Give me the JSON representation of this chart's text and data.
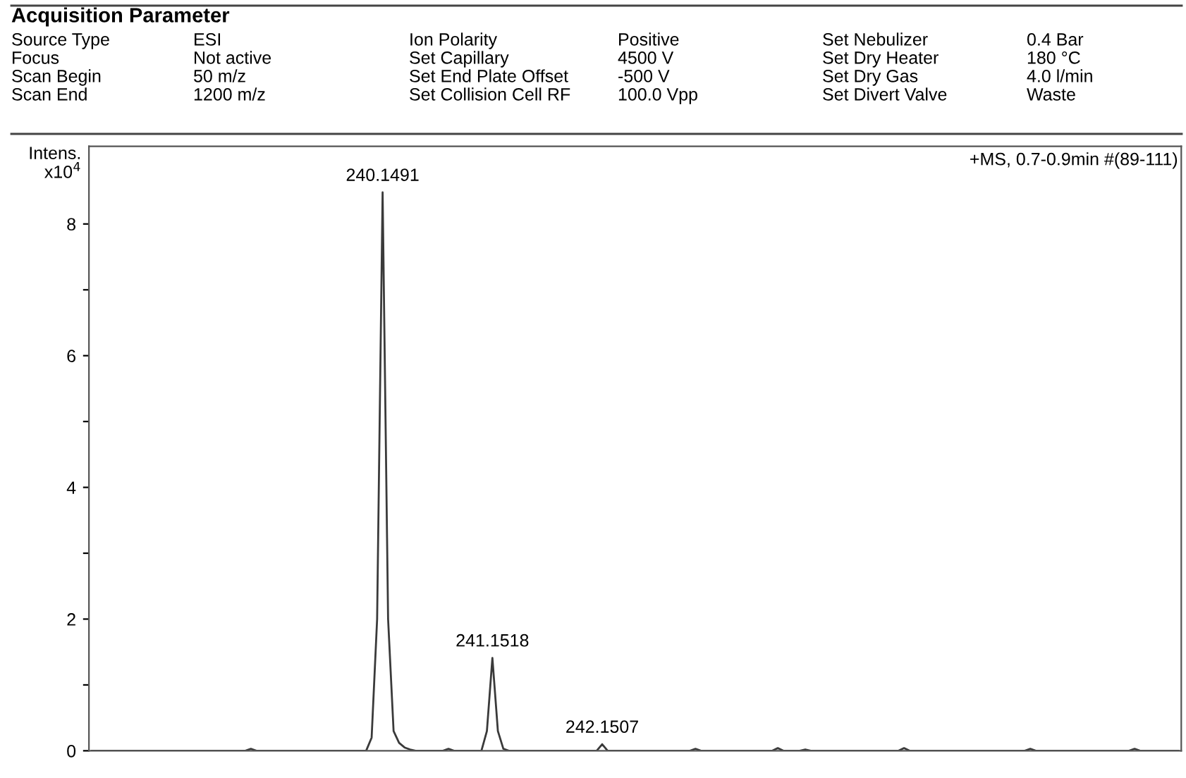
{
  "chart_data": {
    "type": "line",
    "title": "Acquisition Parameter",
    "ylabel": "Intens.\nx10$^{4}$",
    "annotations": [
      "Source Type",
      "Focus",
      "Scan Begin",
      "Scan End",
      "ESI",
      "Not active",
      "50 m/z",
      "1200 m/z",
      "Ion Polarity",
      "Set Capillary",
      "Set End Plate Offset",
      "Set Collision Cell RF",
      "Positive",
      "4500 V",
      "-500 V",
      "100.0 Vpp",
      "Set Nebulizer",
      "Set Dry Heater",
      "Set Dry Gas",
      "Set Divert Valve",
      "0.4 Bar",
      "180 °C",
      "4.0 l/min",
      "Waste",
      "+MS, 0.7-0.9min #(89-111)",
      {
        "text": "240.1491",
        "y": 8.48
      },
      {
        "text": "241.1518",
        "y": 1.41
      },
      {
        "text": "242.1507",
        "y": 0.1
      }
    ],
    "categories": [
      null,
      null,
      null,
      null,
      null,
      null,
      null,
      null,
      null,
      null,
      null,
      null,
      null,
      null,
      null,
      null,
      null,
      null,
      null,
      null,
      null,
      null,
      null,
      null,
      null,
      null,
      null,
      null,
      null,
      null,
      null,
      null,
      null,
      null,
      null,
      null,
      null,
      null,
      null,
      null,
      null,
      null,
      null,
      null,
      null,
      null,
      null,
      null,
      null,
      null,
      null,
      null,
      null,
      null,
      null,
      null,
      null,
      null,
      null,
      null,
      null,
      null,
      null,
      null,
      null,
      null,
      null,
      null,
      null,
      null,
      null,
      null,
      null,
      null,
      null,
      null,
      null,
      null,
      null,
      null,
      null,
      null,
      null,
      null,
      null,
      null,
      null,
      null,
      null,
      null,
      null,
      null,
      null,
      null,
      null,
      null,
      null,
      null,
      null,
      null,
      null,
      null,
      null,
      null,
      null,
      null,
      null,
      null,
      null,
      null,
      null,
      null,
      null,
      null,
      null,
      null,
      null,
      null,
      null,
      null,
      null,
      null,
      null,
      null,
      null,
      null,
      null,
      null,
      null,
      null,
      null,
      null,
      null,
      null,
      null,
      null,
      null,
      null,
      null,
      null,
      null,
      null,
      null,
      null,
      null,
      null,
      null,
      null,
      null,
      null,
      null,
      null,
      null,
      null,
      null,
      null,
      null,
      null,
      null,
      null,
      null,
      null,
      null,
      null,
      null,
      null,
      null,
      null,
      null,
      null,
      null,
      null,
      null,
      null,
      null,
      null,
      null,
      null,
      null,
      null,
      null,
      null,
      null,
      null,
      null,
      null,
      null,
      null,
      null,
      null,
      null,
      null,
      null,
      null,
      null,
      null,
      null,
      null,
      null
    ],
    "series": [
      {
        "color": "#3a3a3a",
        "values": [
          0,
          0,
          0,
          0,
          0,
          0,
          0,
          0,
          0,
          0,
          0,
          0,
          0,
          0,
          0,
          0,
          0,
          0,
          0,
          0,
          0,
          0,
          0,
          0,
          0,
          0,
          0,
          0,
          0,
          0.03,
          0,
          0,
          0,
          0,
          0,
          0,
          0,
          0,
          0,
          0,
          0,
          0,
          0,
          0,
          0,
          0,
          0,
          0,
          0,
          0,
          0,
          0.2,
          2.0,
          8.48,
          2.0,
          0.3,
          0.12,
          0.05,
          0.02,
          0,
          0,
          0,
          0,
          0,
          0,
          0.03,
          0,
          0,
          0,
          0,
          0,
          0,
          0.3,
          1.41,
          0.3,
          0.03,
          0,
          0,
          0,
          0,
          0,
          0,
          0,
          0,
          0,
          0,
          0,
          0,
          0,
          0,
          0,
          0,
          0,
          0.1,
          0,
          0,
          0,
          0,
          0,
          0,
          0,
          0,
          0,
          0,
          0,
          0,
          0,
          0,
          0,
          0,
          0.03,
          0,
          0,
          0,
          0,
          0,
          0,
          0,
          0,
          0,
          0,
          0,
          0,
          0,
          0,
          0.04,
          0,
          0,
          0,
          0,
          0.02,
          0,
          0,
          0,
          0,
          0,
          0,
          0,
          0,
          0,
          0,
          0,
          0,
          0,
          0,
          0,
          0,
          0,
          0.04,
          0,
          0,
          0,
          0,
          0,
          0,
          0,
          0,
          0,
          0,
          0,
          0,
          0,
          0,
          0,
          0,
          0,
          0,
          0,
          0,
          0,
          0,
          0.03,
          0,
          0,
          0,
          0,
          0,
          0,
          0,
          0,
          0,
          0,
          0,
          0,
          0,
          0,
          0,
          0,
          0,
          0,
          0.03,
          0,
          0,
          0,
          0,
          0,
          0,
          0,
          0
        ]
      }
    ],
    "ylim": [
      0,
      9.18
    ],
    "yticks": [
      0,
      {
        "value": 1,
        "label": null
      },
      2,
      {
        "value": 3,
        "label": null
      },
      4,
      {
        "value": 5,
        "label": null
      },
      6,
      {
        "value": 7,
        "label": null
      },
      8
    ],
    "tick_labels": "y",
    "grid": false
  }
}
